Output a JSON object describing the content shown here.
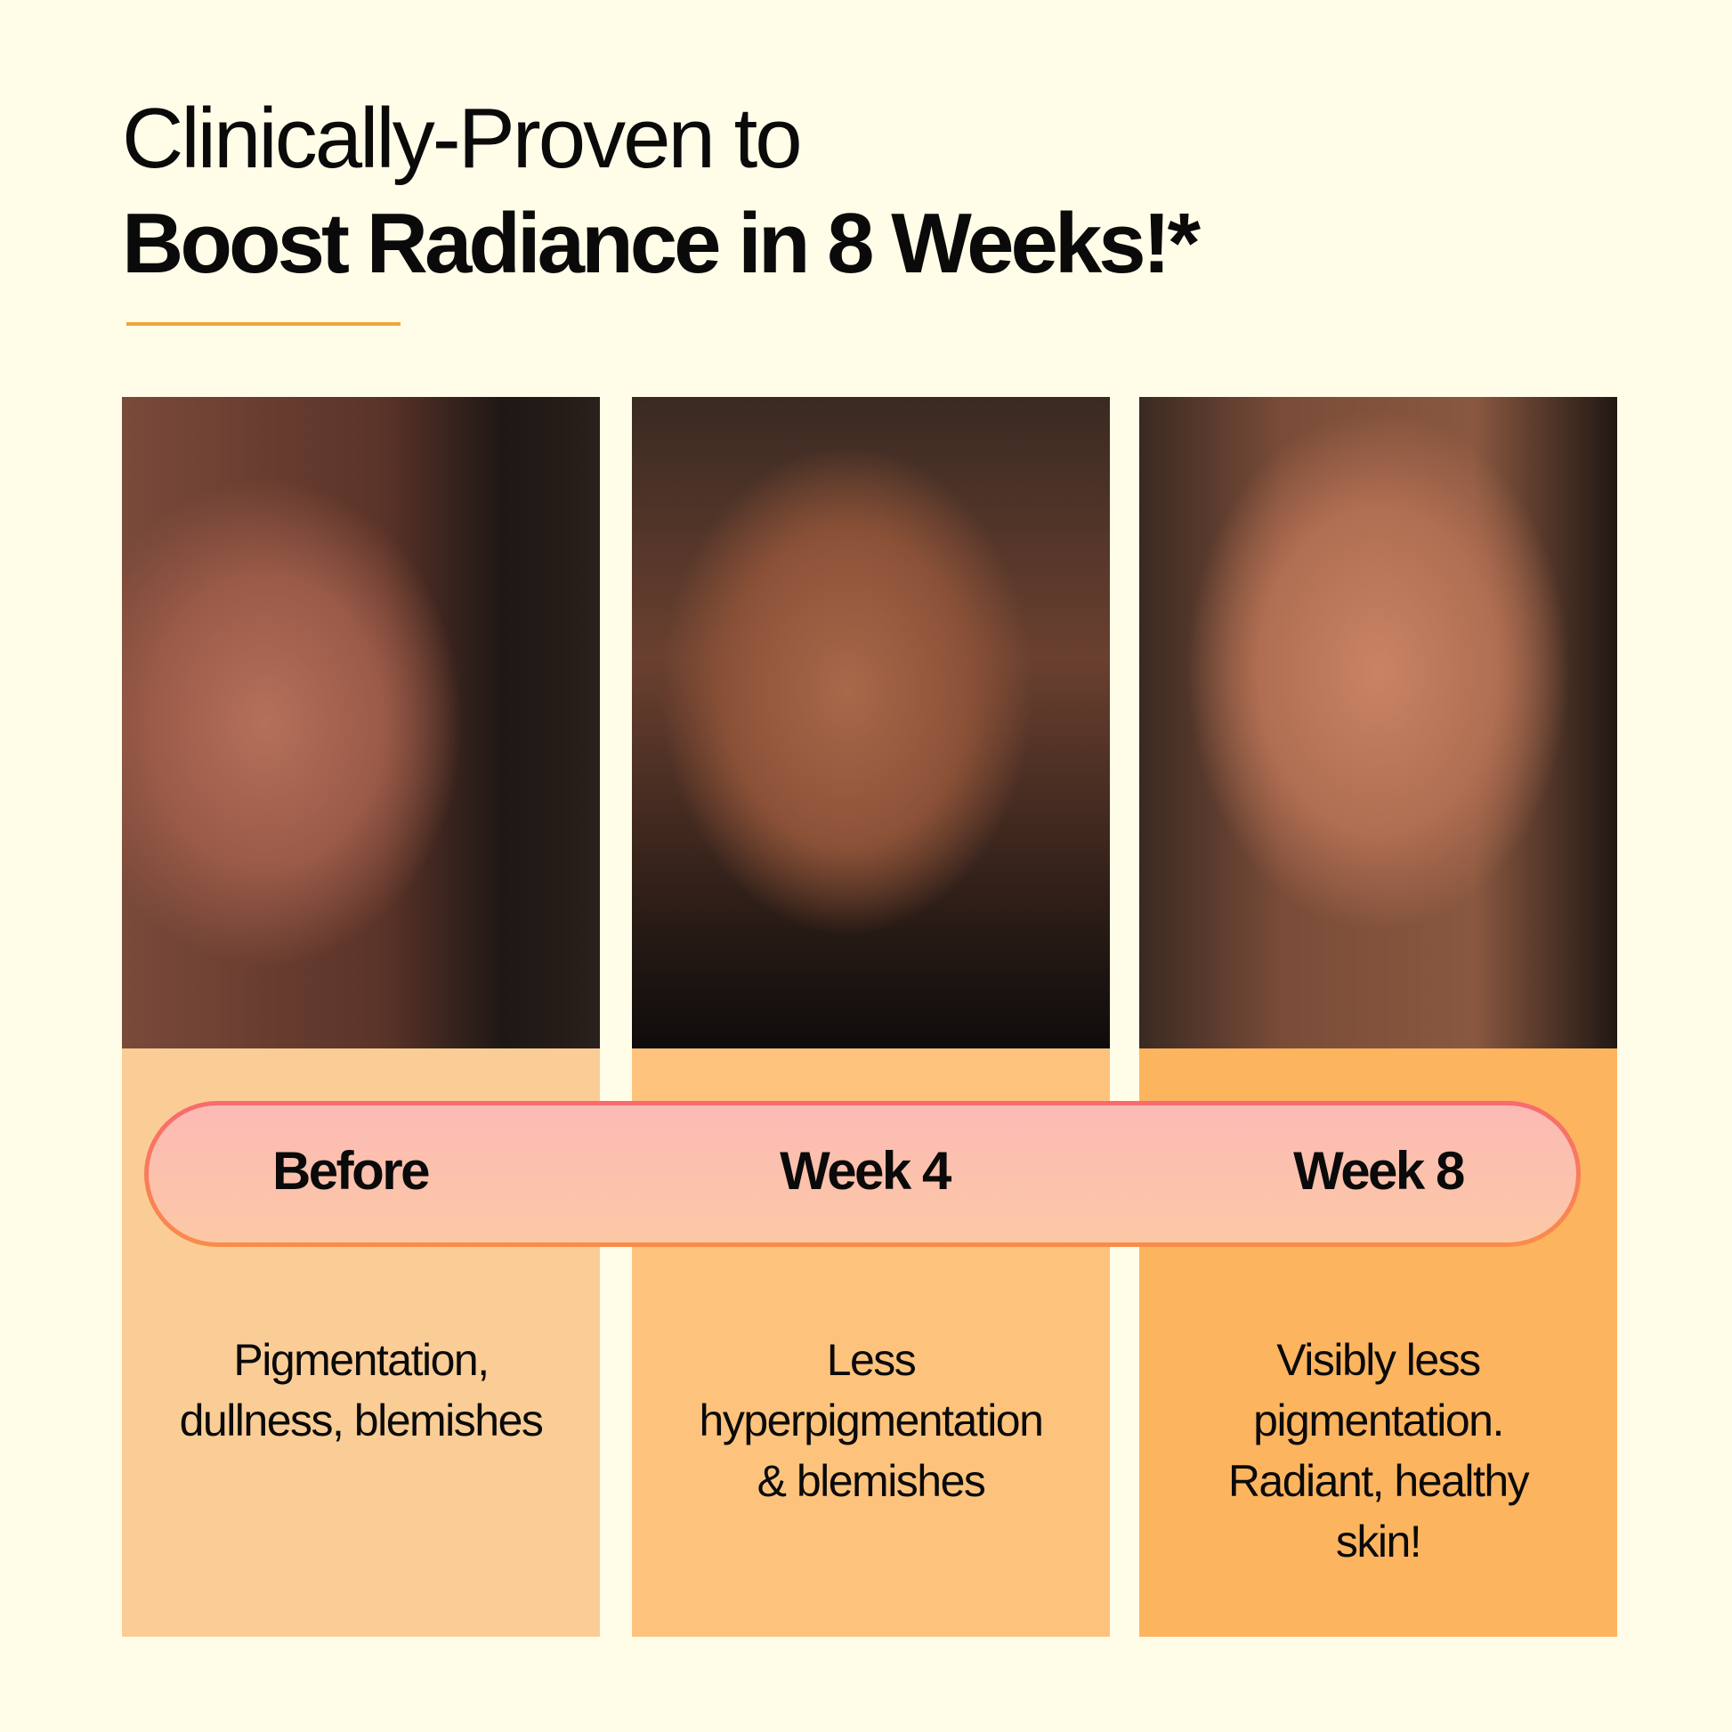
{
  "headline": {
    "line1": "Clinically-Proven to",
    "line2": "Boost  Radiance in 8 Weeks!*"
  },
  "colors": {
    "background": "#FFFDE8",
    "accent_rule": "#F0A53A",
    "panel_before": "#FBCD96",
    "panel_week4": "#FDC37D",
    "panel_week8": "#FDB45F",
    "pill_border_top": "#F76B6E",
    "pill_border_bottom": "#FA8C4A"
  },
  "stages": [
    {
      "label": "Before",
      "description": [
        "Pigmentation,",
        "dullness, blemishes"
      ],
      "photo": "face-before-photo"
    },
    {
      "label": "Week 4",
      "description": [
        "Less",
        "hyperpigmentation",
        "& blemishes"
      ],
      "photo": "face-week4-photo"
    },
    {
      "label": "Week 8",
      "description": [
        "Visibly less",
        "pigmentation.",
        "Radiant, healthy",
        "skin!"
      ],
      "photo": "face-week8-photo"
    }
  ]
}
